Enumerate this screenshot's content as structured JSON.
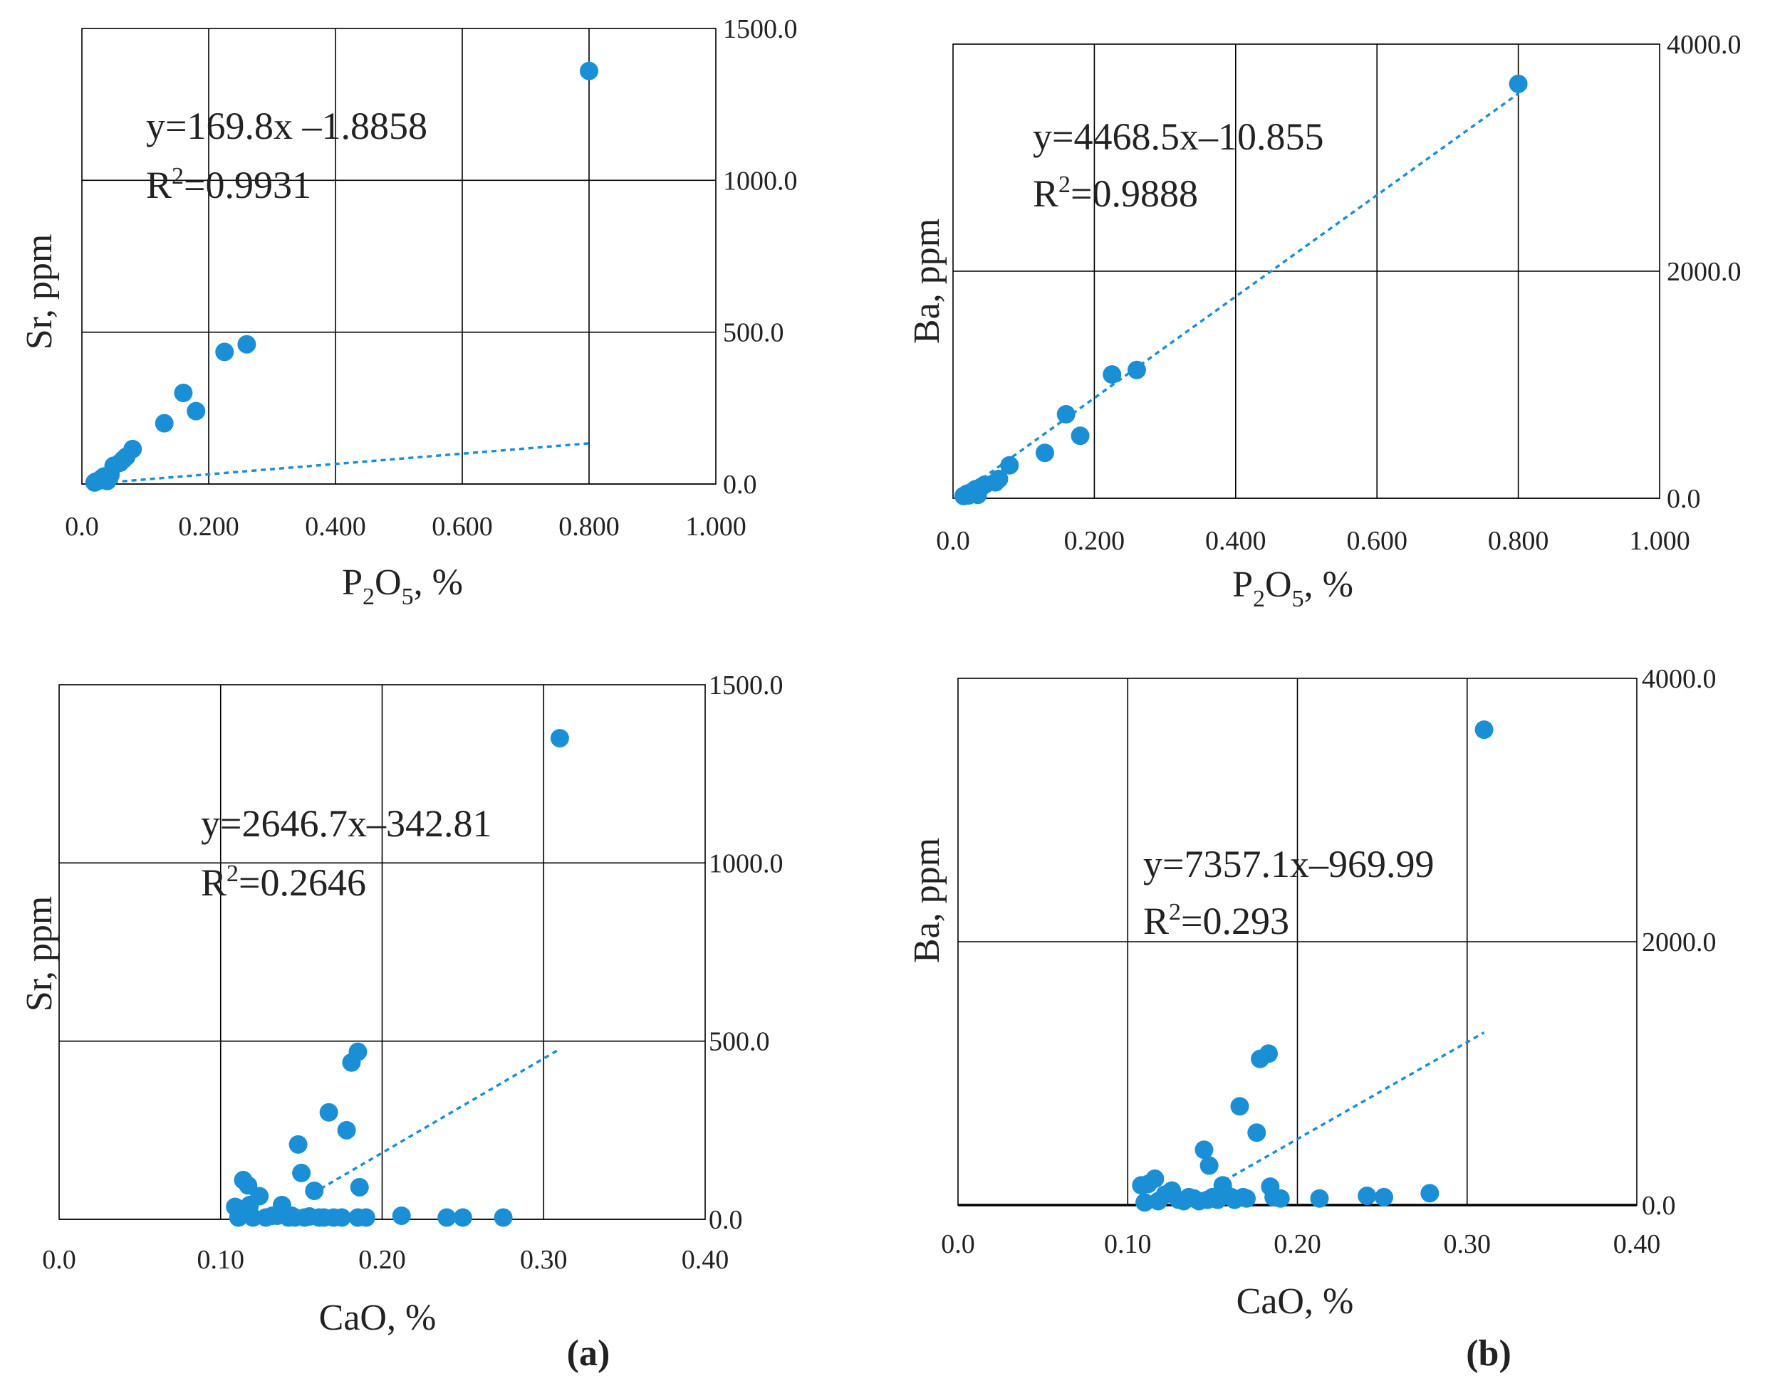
{
  "chart_data": [
    {
      "id": "sr-p2o5",
      "type": "scatter",
      "panel": "a",
      "xlabel": "P2O5, %",
      "ylabel": "Sr, ppm",
      "xlim": [
        0,
        1.0
      ],
      "ylim": [
        0,
        1500
      ],
      "x_ticks": [
        "0.0",
        "0.200",
        "0.400",
        "0.600",
        "0.800",
        "1.000"
      ],
      "y_ticks": [
        "0.0",
        "500.0",
        "1000.0",
        "1500.0"
      ],
      "y_axis_side": "right",
      "equation": "y=169.8x –1.8858",
      "r2_label": "R",
      "r2_sup": "2",
      "r2_value": "=0.9931",
      "trend": {
        "slope": 169.8,
        "intercept": -1.8858,
        "x_from": 0.02,
        "x_to": 0.8,
        "units_scale": 10
      },
      "points": [
        [
          0.02,
          5
        ],
        [
          0.022,
          8
        ],
        [
          0.025,
          10
        ],
        [
          0.028,
          12
        ],
        [
          0.03,
          15
        ],
        [
          0.032,
          20
        ],
        [
          0.035,
          25
        ],
        [
          0.038,
          18
        ],
        [
          0.04,
          10
        ],
        [
          0.045,
          30
        ],
        [
          0.05,
          60
        ],
        [
          0.06,
          70
        ],
        [
          0.065,
          80
        ],
        [
          0.07,
          90
        ],
        [
          0.08,
          115
        ],
        [
          0.13,
          200
        ],
        [
          0.16,
          300
        ],
        [
          0.18,
          240
        ],
        [
          0.225,
          435
        ],
        [
          0.26,
          460
        ],
        [
          0.8,
          1360
        ]
      ]
    },
    {
      "id": "ba-p2o5",
      "type": "scatter",
      "panel": "b",
      "xlabel": "P2O5, %",
      "ylabel": "Ba,  ppm",
      "xlim": [
        0,
        1.0
      ],
      "ylim": [
        0,
        4000
      ],
      "x_ticks": [
        "0.0",
        "0.200",
        "0.400",
        "0.600",
        "0.800",
        "1.000"
      ],
      "y_ticks": [
        "0.0",
        "2000.0",
        "4000.0"
      ],
      "y_axis_side": "right",
      "equation": "y=4468.5x–10.855",
      "r2_label": "R",
      "r2_sup": "2",
      "r2_value": "=0.9888",
      "trend": {
        "slope": 4468.5,
        "intercept": -10.855,
        "x_from": 0.02,
        "x_to": 0.8,
        "units_scale": 1
      },
      "points": [
        [
          0.015,
          20
        ],
        [
          0.018,
          30
        ],
        [
          0.02,
          40
        ],
        [
          0.022,
          25
        ],
        [
          0.025,
          50
        ],
        [
          0.028,
          60
        ],
        [
          0.03,
          70
        ],
        [
          0.032,
          80
        ],
        [
          0.035,
          30
        ],
        [
          0.04,
          100
        ],
        [
          0.045,
          120
        ],
        [
          0.06,
          140
        ],
        [
          0.065,
          170
        ],
        [
          0.08,
          290
        ],
        [
          0.13,
          400
        ],
        [
          0.16,
          740
        ],
        [
          0.18,
          550
        ],
        [
          0.225,
          1090
        ],
        [
          0.26,
          1130
        ],
        [
          0.8,
          3650
        ]
      ]
    },
    {
      "id": "sr-cao",
      "type": "scatter",
      "panel": "a",
      "xlabel": "CaO, %",
      "ylabel": "Sr, ppm",
      "xlim": [
        0,
        0.4
      ],
      "ylim": [
        0,
        1500
      ],
      "x_ticks": [
        "0.0",
        "0.10",
        "0.20",
        "0.30",
        "0.40"
      ],
      "y_ticks": [
        "0.0",
        "500.0",
        "1000.0",
        "1500.0"
      ],
      "y_axis_side": "right",
      "equation": "y=2646.7x–342.81",
      "r2_label": "R",
      "r2_sup": "2",
      "r2_value": "=0.2646",
      "trend": {
        "slope": 2646.7,
        "intercept": -342.81,
        "x_from": 0.157,
        "x_to": 0.31,
        "units_scale": 1
      },
      "points": [
        [
          0.109,
          35
        ],
        [
          0.111,
          5
        ],
        [
          0.114,
          110
        ],
        [
          0.117,
          95
        ],
        [
          0.118,
          40
        ],
        [
          0.12,
          5
        ],
        [
          0.124,
          65
        ],
        [
          0.128,
          5
        ],
        [
          0.132,
          10
        ],
        [
          0.135,
          10
        ],
        [
          0.138,
          40
        ],
        [
          0.142,
          5
        ],
        [
          0.144,
          10
        ],
        [
          0.146,
          5
        ],
        [
          0.148,
          210
        ],
        [
          0.15,
          130
        ],
        [
          0.152,
          5
        ],
        [
          0.155,
          8
        ],
        [
          0.158,
          80
        ],
        [
          0.161,
          5
        ],
        [
          0.164,
          5
        ],
        [
          0.167,
          300
        ],
        [
          0.17,
          5
        ],
        [
          0.175,
          5
        ],
        [
          0.178,
          250
        ],
        [
          0.181,
          440
        ],
        [
          0.185,
          470
        ],
        [
          0.186,
          90
        ],
        [
          0.185,
          5
        ],
        [
          0.19,
          5
        ],
        [
          0.212,
          10
        ],
        [
          0.24,
          5
        ],
        [
          0.25,
          5
        ],
        [
          0.275,
          5
        ],
        [
          0.31,
          1350
        ]
      ]
    },
    {
      "id": "ba-cao",
      "type": "scatter",
      "panel": "b",
      "xlabel": "CaO, %",
      "ylabel": "Ba,  ppm",
      "xlim": [
        0,
        0.4
      ],
      "ylim": [
        0,
        4000
      ],
      "x_ticks": [
        "0.0",
        "0.10",
        "0.20",
        "0.30",
        "0.40"
      ],
      "y_ticks": [
        "0.0",
        "2000.0",
        "4000.0"
      ],
      "y_axis_side": "right",
      "equation": "y=7357.1x–969.99",
      "r2_label": "R",
      "r2_sup": "2",
      "r2_value": "=0.293",
      "trend": {
        "slope": 7357.1,
        "intercept": -969.99,
        "x_from": 0.157,
        "x_to": 0.31,
        "units_scale": 1
      },
      "points": [
        [
          0.108,
          150
        ],
        [
          0.11,
          20
        ],
        [
          0.112,
          160
        ],
        [
          0.116,
          200
        ],
        [
          0.118,
          30
        ],
        [
          0.122,
          80
        ],
        [
          0.126,
          110
        ],
        [
          0.13,
          40
        ],
        [
          0.133,
          30
        ],
        [
          0.136,
          60
        ],
        [
          0.139,
          50
        ],
        [
          0.142,
          30
        ],
        [
          0.145,
          420
        ],
        [
          0.147,
          40
        ],
        [
          0.148,
          300
        ],
        [
          0.15,
          60
        ],
        [
          0.153,
          40
        ],
        [
          0.156,
          150
        ],
        [
          0.158,
          80
        ],
        [
          0.161,
          60
        ],
        [
          0.163,
          40
        ],
        [
          0.166,
          750
        ],
        [
          0.168,
          60
        ],
        [
          0.17,
          50
        ],
        [
          0.176,
          550
        ],
        [
          0.178,
          1110
        ],
        [
          0.183,
          1150
        ],
        [
          0.184,
          140
        ],
        [
          0.186,
          60
        ],
        [
          0.19,
          50
        ],
        [
          0.213,
          50
        ],
        [
          0.241,
          70
        ],
        [
          0.251,
          60
        ],
        [
          0.278,
          90
        ],
        [
          0.31,
          3610
        ]
      ]
    }
  ],
  "panel_labels": {
    "a": "(a)",
    "b": "(b)"
  },
  "axis_text": {
    "p2o5_main": "P",
    "p2o5_sub1": "2",
    "p2o5_mid": "O",
    "p2o5_sub2": "5",
    "p2o5_tail": ", %",
    "cao": "CaO, %",
    "sr": "Sr, ppm",
    "ba": "Ba,  ppm"
  },
  "colors": {
    "marker": "#1a8fd6",
    "trend": "#1a8fd6",
    "grid": "#000000",
    "text": "#222222"
  }
}
